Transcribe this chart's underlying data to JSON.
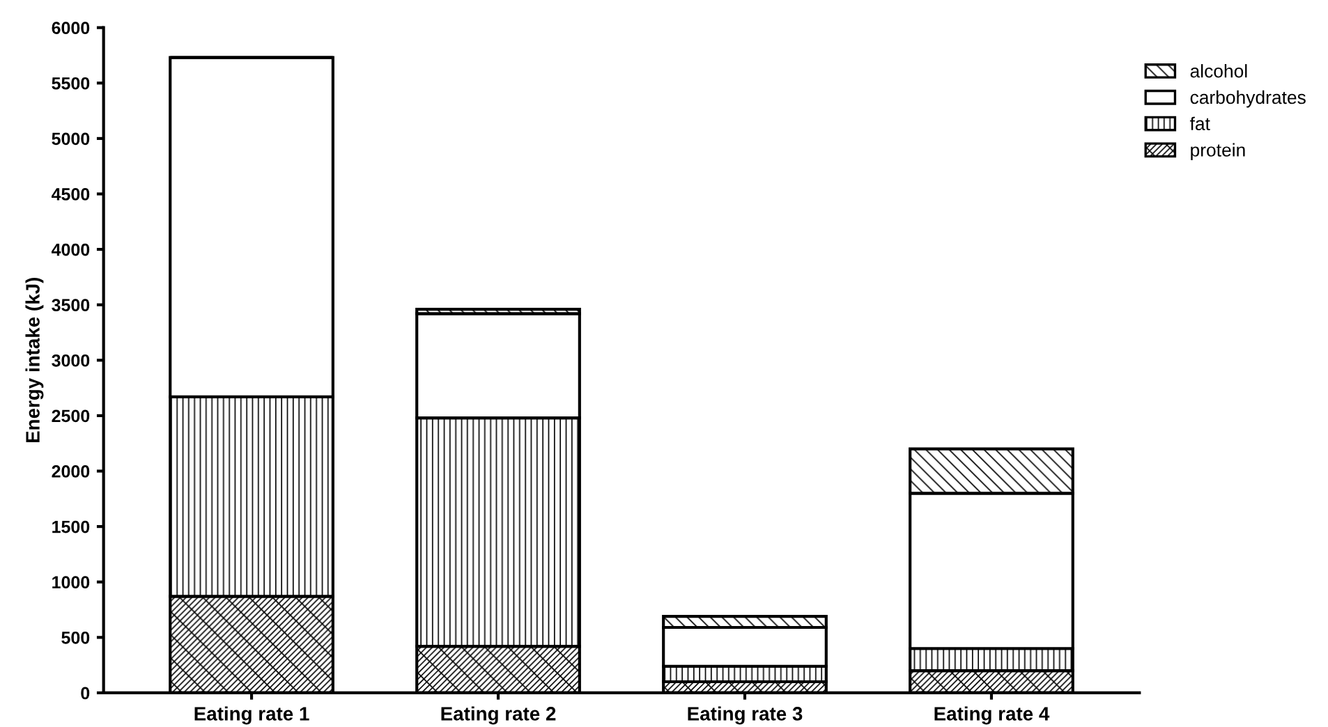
{
  "chart_data": {
    "type": "bar",
    "stacked": true,
    "ylabel": "Energy intake (kJ)",
    "categories": [
      "Eating rate 1",
      "Eating rate 2",
      "Eating rate 3",
      "Eating rate 4"
    ],
    "series": [
      {
        "name": "protein",
        "color": "#000000",
        "values": [
          870,
          420,
          100,
          200
        ]
      },
      {
        "name": "fat",
        "color": "#000000",
        "values": [
          1800,
          2060,
          140,
          200
        ]
      },
      {
        "name": "carbohydrates",
        "color": "#ffffff",
        "values": [
          3060,
          940,
          350,
          1400
        ]
      },
      {
        "name": "alcohol",
        "color": "#000000",
        "values": [
          0,
          40,
          100,
          400
        ]
      }
    ],
    "ylim": [
      0,
      6000
    ],
    "yticks": [
      0,
      500,
      1000,
      1500,
      2000,
      2500,
      3000,
      3500,
      4000,
      4500,
      5000,
      5500,
      6000
    ],
    "grid": false,
    "legend": "top right"
  }
}
